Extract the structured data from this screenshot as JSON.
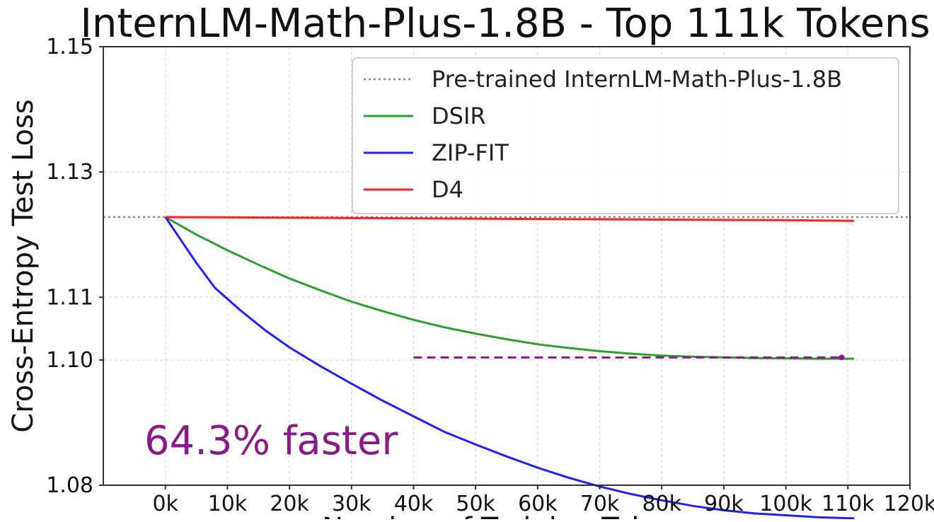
{
  "chart_data": {
    "type": "line",
    "title": "InternLM-Math-Plus-1.8B - Top 111k Tokens",
    "xlabel": "Number of Training Tokens",
    "ylabel": "Cross-Entropy Test Loss",
    "xlim": [
      -10000,
      120000
    ],
    "ylim": [
      1.08,
      1.15
    ],
    "x_ticks": [
      0,
      10000,
      20000,
      30000,
      40000,
      50000,
      60000,
      70000,
      80000,
      90000,
      100000,
      110000,
      120000
    ],
    "x_tick_labels": [
      "0k",
      "10k",
      "20k",
      "30k",
      "40k",
      "50k",
      "60k",
      "70k",
      "80k",
      "90k",
      "100k",
      "110k",
      "120k"
    ],
    "y_ticks": [
      1.08,
      1.1,
      1.11,
      1.13,
      1.15
    ],
    "y_tick_labels": [
      "1.08",
      "1.10",
      "1.11",
      "1.13",
      "1.15"
    ],
    "grid": true,
    "legend_position": "top-right",
    "baseline": {
      "name": "Pre-trained InternLM-Math-Plus-1.8B",
      "y": 1.1228,
      "color": "#888888"
    },
    "series": [
      {
        "name": "DSIR",
        "color": "#2ca02c",
        "x": [
          0,
          5000,
          10000,
          15000,
          20000,
          25000,
          30000,
          35000,
          40000,
          45000,
          50000,
          55000,
          60000,
          65000,
          70000,
          75000,
          80000,
          85000,
          90000,
          95000,
          100000,
          105000,
          111000
        ],
        "y": [
          1.1228,
          1.12,
          1.1175,
          1.1152,
          1.113,
          1.1111,
          1.1093,
          1.1078,
          1.1064,
          1.1052,
          1.1042,
          1.1033,
          1.1025,
          1.1019,
          1.1014,
          1.101,
          1.1007,
          1.1005,
          1.1004,
          1.1003,
          1.10025,
          1.1002,
          1.1002
        ]
      },
      {
        "name": "ZIP-FIT",
        "color": "#1f1fff",
        "x": [
          0,
          5000,
          8000,
          12000,
          16000,
          20000,
          25000,
          30000,
          35000,
          40000,
          45000,
          50000,
          55000,
          60000,
          65000,
          70000,
          75000,
          80000,
          85000,
          90000,
          95000,
          100000,
          105000,
          111000
        ],
        "y": [
          1.1228,
          1.1155,
          1.1115,
          1.108,
          1.1048,
          1.102,
          1.099,
          1.0962,
          1.0935,
          1.091,
          1.0885,
          1.0865,
          1.0846,
          1.0828,
          1.0812,
          1.0798,
          1.0786,
          1.0776,
          1.0767,
          1.076,
          1.0755,
          1.0752,
          1.0749,
          1.0747
        ]
      },
      {
        "name": "D4",
        "color": "#ff2020",
        "x": [
          0,
          20000,
          40000,
          60000,
          80000,
          100000,
          111000
        ],
        "y": [
          1.1228,
          1.1227,
          1.1226,
          1.1225,
          1.1224,
          1.1223,
          1.1222
        ]
      }
    ],
    "annotation": {
      "text": "64.3% faster",
      "color": "#8a1a8a",
      "dashed_from_x": 40000,
      "dashed_to_x": 109000,
      "dashed_y": 1.1004
    }
  }
}
